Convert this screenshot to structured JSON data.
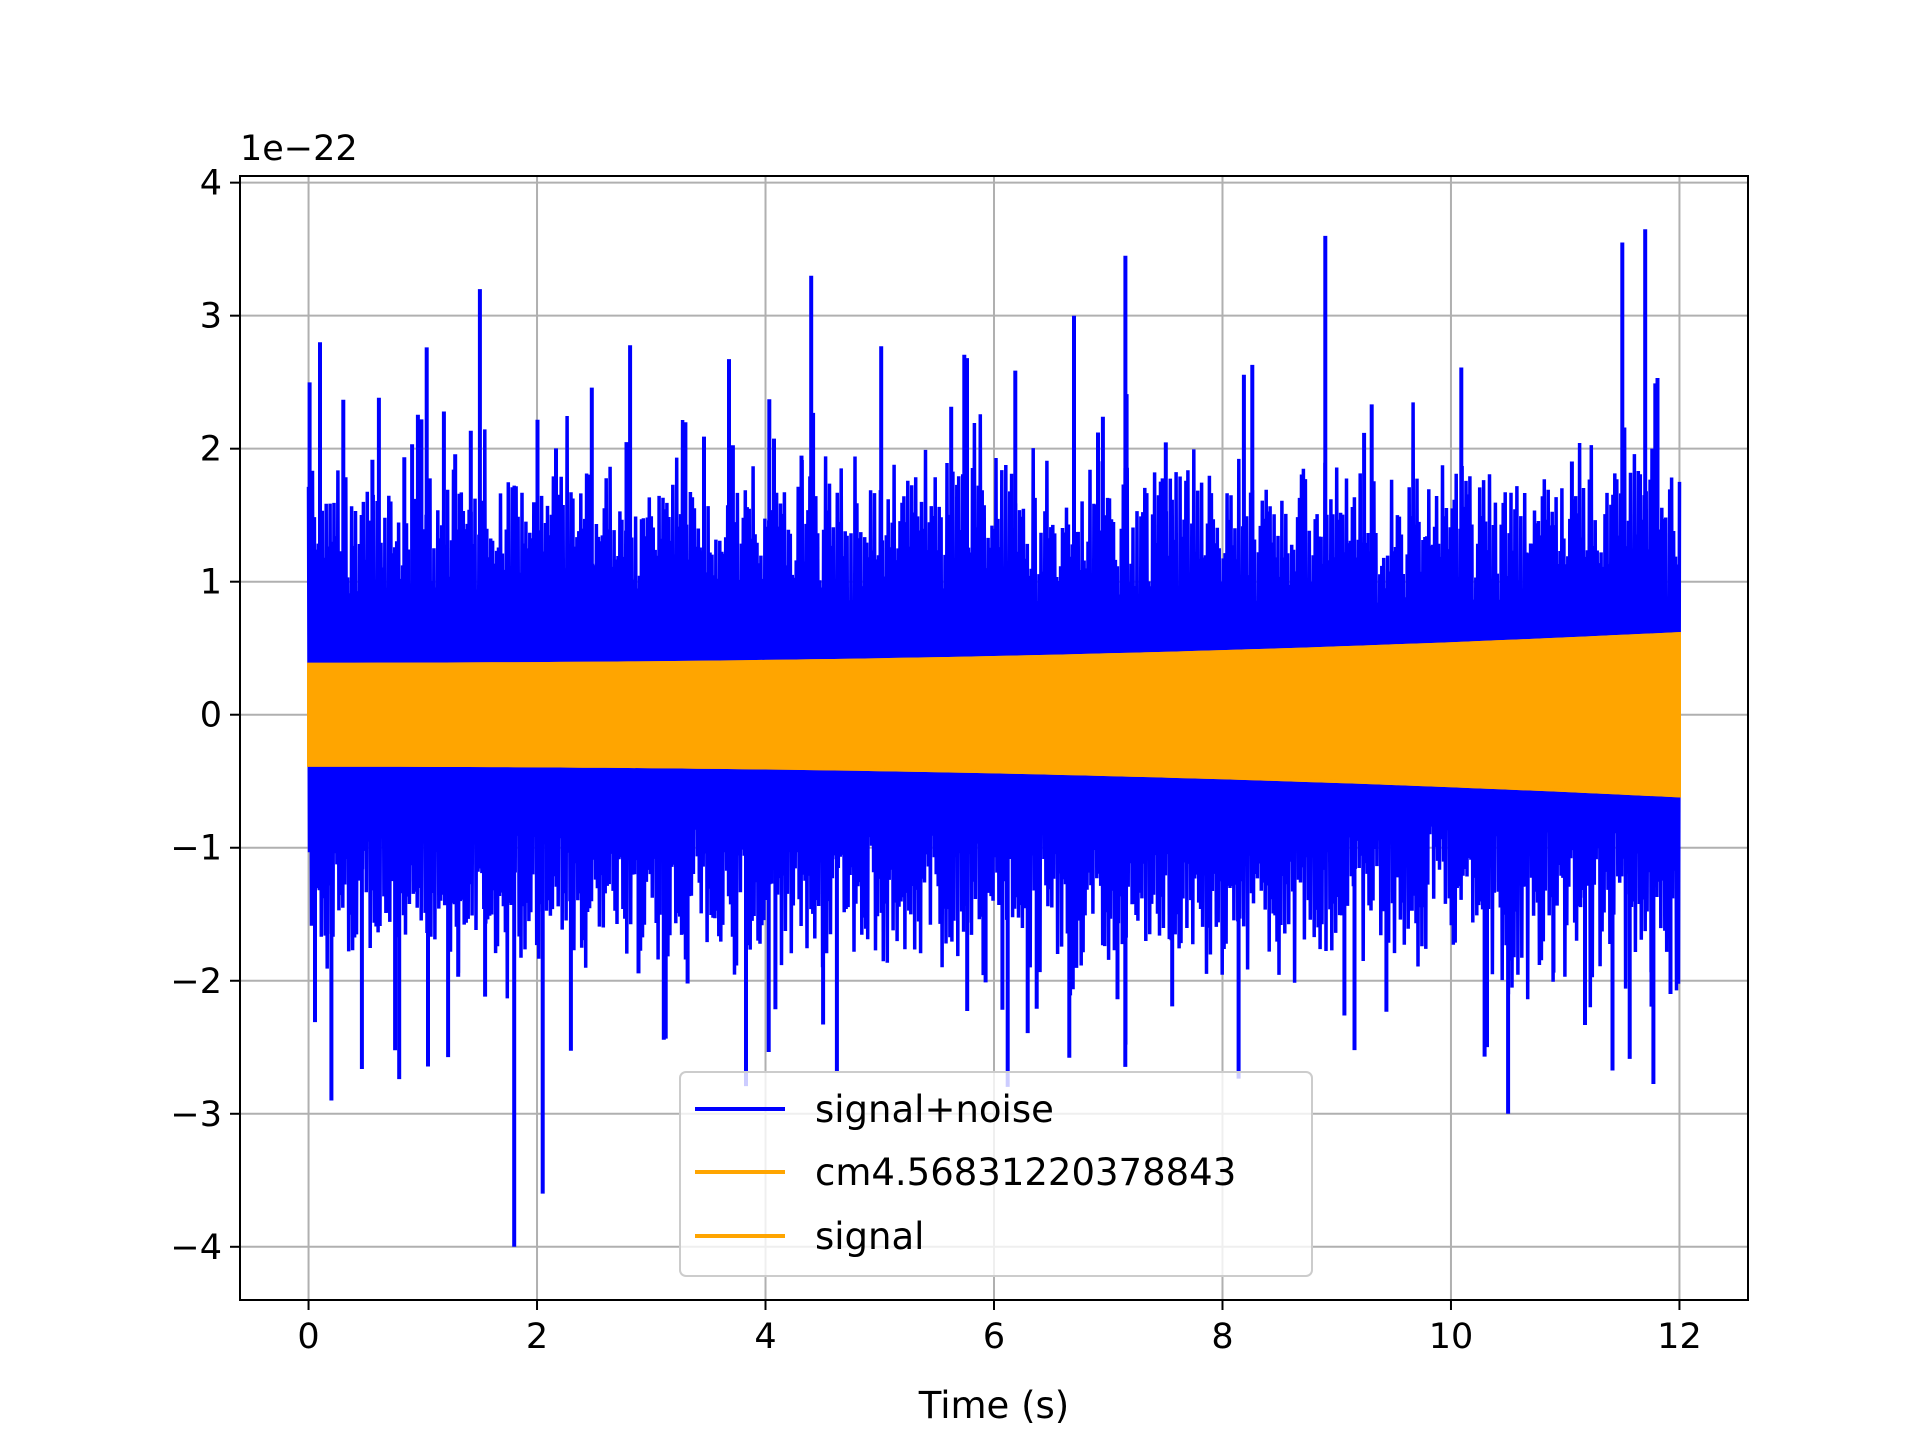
{
  "chart_data": {
    "type": "line",
    "title": "",
    "xlabel": "Time (s)",
    "ylabel": "",
    "y_offset_label": "1e−22",
    "xlim": [
      -0.6,
      12.6
    ],
    "ylim": [
      -4.4,
      4.05
    ],
    "x_ticks": [
      0,
      2,
      4,
      6,
      8,
      10,
      12
    ],
    "x_tick_labels": [
      "0",
      "2",
      "4",
      "6",
      "8",
      "10",
      "12"
    ],
    "y_ticks": [
      -4,
      -3,
      -2,
      -1,
      0,
      1,
      2,
      3,
      4
    ],
    "y_tick_labels": [
      "−4",
      "−3",
      "−2",
      "−1",
      "0",
      "1",
      "2",
      "3",
      "4"
    ],
    "grid": true,
    "legend_position": "lower center",
    "series": [
      {
        "name": "signal+noise",
        "color": "#0000ff",
        "description_x_range": [
          0,
          12
        ],
        "typical_envelope": [
          -1.7,
          1.8
        ],
        "peaks": [
          {
            "x": 0.1,
            "y": 2.8
          },
          {
            "x": 1.5,
            "y": 3.2
          },
          {
            "x": 4.4,
            "y": 3.3
          },
          {
            "x": 6.7,
            "y": 3.0
          },
          {
            "x": 7.15,
            "y": 3.45
          },
          {
            "x": 8.9,
            "y": 3.6
          },
          {
            "x": 11.5,
            "y": 3.55
          },
          {
            "x": 11.7,
            "y": 3.65
          },
          {
            "x": 1.8,
            "y": -4.0
          },
          {
            "x": 2.05,
            "y": -3.6
          },
          {
            "x": 10.5,
            "y": -3.0
          },
          {
            "x": 0.2,
            "y": -2.9
          }
        ]
      },
      {
        "name": "cm4.56831220378843",
        "color": "#ffa500",
        "x_range": [
          0,
          12
        ],
        "amplitude_start": 0.38,
        "amplitude_end": 0.61
      },
      {
        "name": "signal",
        "color": "#ffa500",
        "x_range": [
          0,
          12
        ],
        "amplitude_start": 0.38,
        "amplitude_end": 0.61
      }
    ]
  },
  "colors": {
    "noise": "#0000ff",
    "signal": "#ffa500",
    "grid": "#b0b0b0",
    "axes": "#000000",
    "legend_border": "#cccccc"
  }
}
